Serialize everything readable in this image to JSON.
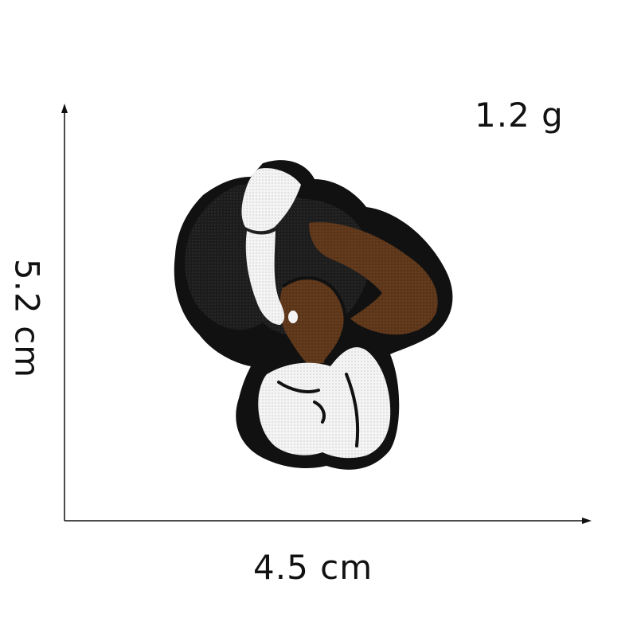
{
  "weight": "1.2 g",
  "dimensions": {
    "width": "4.5 cm",
    "height": "5.2 cm"
  },
  "product": {
    "type": "embroidered patch",
    "colors": {
      "border": "#111111",
      "hair": "#1e1e1e",
      "skin": "#5a3418",
      "shirt": "#f2f2f2"
    }
  }
}
